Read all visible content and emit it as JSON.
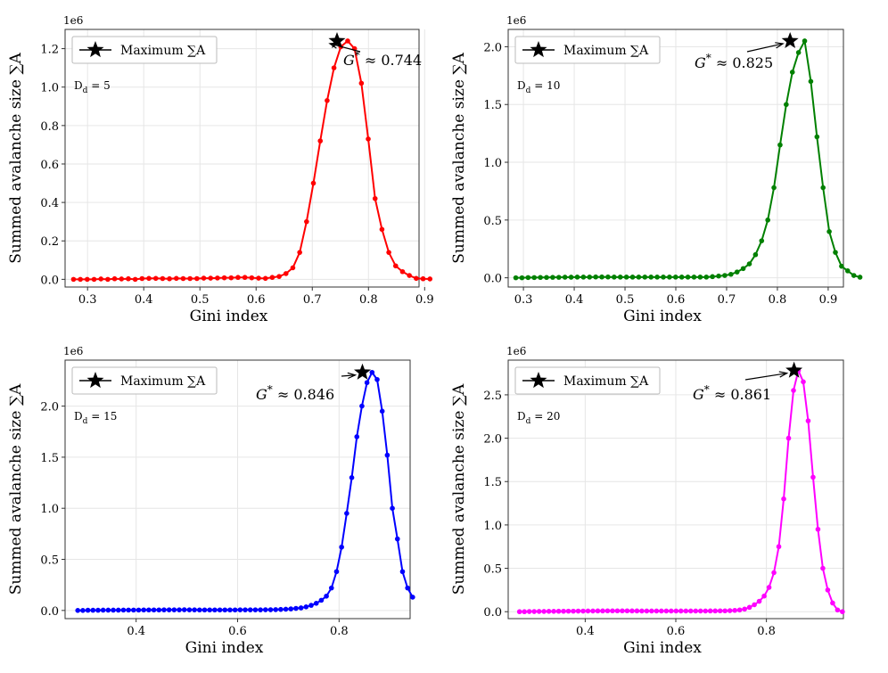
{
  "figure": {
    "legend_label": "Maximum ∑A",
    "multiplier": "1e6",
    "xlabel": "Gini index",
    "ylabel": "Summed avalanche size ∑A"
  },
  "chart_data": [
    {
      "type": "line",
      "panel": "Dd = 5",
      "dd_label": "D",
      "dd_sub": "d",
      "dd_value": "= 5",
      "color": "#ff0000",
      "title": "",
      "xlabel": "Gini index",
      "ylabel": "Summed avalanche size ∑A",
      "multiplier": "1e6",
      "xlim": [
        0.26,
        0.89
      ],
      "ylim": [
        -0.04,
        1.3
      ],
      "xticks": [
        0.3,
        0.4,
        0.5,
        0.6,
        0.7,
        0.8,
        0.9
      ],
      "xtick_labels": [
        "0.3",
        "0.4",
        "0.5",
        "0.6",
        "0.7",
        "0.8",
        "0.9"
      ],
      "yticks": [
        0.0,
        0.2,
        0.4,
        0.6,
        0.8,
        1.0,
        1.2
      ],
      "ytick_labels": [
        "0.0",
        "0.2",
        "0.4",
        "0.6",
        "0.8",
        "1.0",
        "1.2"
      ],
      "x_start": 0.275,
      "x_step": 0.0122,
      "values": [
        0.0,
        0.0,
        0.0,
        0.0,
        0.002,
        0.0,
        0.003,
        0.002,
        0.003,
        0.0,
        0.004,
        0.005,
        0.005,
        0.004,
        0.003,
        0.005,
        0.004,
        0.004,
        0.004,
        0.006,
        0.006,
        0.007,
        0.008,
        0.008,
        0.01,
        0.01,
        0.008,
        0.006,
        0.005,
        0.01,
        0.015,
        0.03,
        0.06,
        0.14,
        0.3,
        0.5,
        0.72,
        0.93,
        1.1,
        1.21,
        1.24,
        1.2,
        1.02,
        0.73,
        0.42,
        0.26,
        0.14,
        0.07,
        0.04,
        0.02,
        0.005,
        0.003,
        0.002
      ],
      "star": {
        "x": 0.744,
        "y": 1.24
      },
      "annotation": {
        "g_symbol": "G",
        "superscript": "*",
        "text": "≈ 0.744"
      }
    },
    {
      "type": "line",
      "panel": "Dd = 10",
      "dd_label": "D",
      "dd_sub": "d",
      "dd_value": "= 10",
      "color": "#008000",
      "title": "",
      "xlabel": "Gini index",
      "ylabel": "Summed avalanche size ∑A",
      "multiplier": "1e6",
      "xlim": [
        0.27,
        0.93
      ],
      "ylim": [
        -0.08,
        2.15
      ],
      "xticks": [
        0.3,
        0.4,
        0.5,
        0.6,
        0.7,
        0.8,
        0.9
      ],
      "xtick_labels": [
        "0.3",
        "0.4",
        "0.5",
        "0.6",
        "0.7",
        "0.8",
        "0.9"
      ],
      "yticks": [
        0.0,
        0.5,
        1.0,
        1.5,
        2.0
      ],
      "ytick_labels": [
        "0.0",
        "0.5",
        "1.0",
        "1.5",
        "2.0"
      ],
      "x_start": 0.285,
      "x_step": 0.0121,
      "values": [
        0.0,
        0.0,
        0.002,
        0.002,
        0.003,
        0.003,
        0.004,
        0.004,
        0.005,
        0.005,
        0.006,
        0.006,
        0.006,
        0.007,
        0.007,
        0.007,
        0.006,
        0.006,
        0.006,
        0.006,
        0.006,
        0.006,
        0.006,
        0.006,
        0.006,
        0.006,
        0.006,
        0.006,
        0.006,
        0.006,
        0.006,
        0.006,
        0.01,
        0.015,
        0.02,
        0.03,
        0.05,
        0.08,
        0.12,
        0.2,
        0.32,
        0.5,
        0.78,
        1.15,
        1.5,
        1.78,
        1.95,
        2.05,
        1.7,
        1.22,
        0.78,
        0.4,
        0.22,
        0.1,
        0.06,
        0.02,
        0.005
      ],
      "star": {
        "x": 0.825,
        "y": 2.05
      },
      "annotation": {
        "g_symbol": "G",
        "superscript": "*",
        "text": "≈ 0.825"
      }
    },
    {
      "type": "line",
      "panel": "Dd = 15",
      "dd_label": "D",
      "dd_sub": "d",
      "dd_value": "= 15",
      "color": "#0000ff",
      "title": "",
      "xlabel": "Gini index",
      "ylabel": "Summed avalanche size ∑A",
      "multiplier": "1e6",
      "xlim": [
        0.26,
        0.94
      ],
      "ylim": [
        -0.08,
        2.45
      ],
      "xticks": [
        0.4,
        0.6,
        0.8
      ],
      "xtick_labels": [
        "0.4",
        "0.6",
        "0.8"
      ],
      "yticks": [
        0.0,
        0.5,
        1.0,
        1.5,
        2.0
      ],
      "ytick_labels": [
        "0.0",
        "0.5",
        "1.0",
        "1.5",
        "2.0"
      ],
      "x_start": 0.285,
      "x_step": 0.01,
      "values": [
        0.0,
        0.0,
        0.002,
        0.002,
        0.002,
        0.003,
        0.003,
        0.003,
        0.003,
        0.004,
        0.004,
        0.004,
        0.004,
        0.005,
        0.005,
        0.005,
        0.005,
        0.006,
        0.006,
        0.006,
        0.006,
        0.007,
        0.006,
        0.006,
        0.005,
        0.005,
        0.005,
        0.005,
        0.005,
        0.005,
        0.005,
        0.005,
        0.006,
        0.006,
        0.006,
        0.006,
        0.006,
        0.007,
        0.007,
        0.008,
        0.01,
        0.012,
        0.015,
        0.02,
        0.025,
        0.035,
        0.05,
        0.07,
        0.1,
        0.14,
        0.22,
        0.38,
        0.62,
        0.95,
        1.3,
        1.7,
        2.0,
        2.23,
        2.33,
        2.26,
        1.95,
        1.52,
        1.0,
        0.7,
        0.38,
        0.22,
        0.13
      ],
      "star": {
        "x": 0.846,
        "y": 2.33
      },
      "annotation": {
        "g_symbol": "G",
        "superscript": "*",
        "text": "≈ 0.846"
      }
    },
    {
      "type": "line",
      "panel": "Dd = 20",
      "dd_label": "D",
      "dd_sub": "d",
      "dd_value": "= 20",
      "color": "#ff00ff",
      "title": "",
      "xlabel": "Gini index",
      "ylabel": "Summed avalanche size ∑A",
      "multiplier": "1e6",
      "xlim": [
        0.23,
        0.97
      ],
      "ylim": [
        -0.08,
        2.9
      ],
      "xticks": [
        0.4,
        0.6,
        0.8
      ],
      "xtick_labels": [
        "0.4",
        "0.6",
        "0.8"
      ],
      "yticks": [
        0.0,
        0.5,
        1.0,
        1.5,
        2.0,
        2.5
      ],
      "ytick_labels": [
        "0.0",
        "0.5",
        "1.0",
        "1.5",
        "2.0",
        "2.5"
      ],
      "x_start": 0.255,
      "x_step": 0.0108,
      "values": [
        0.0,
        0.0,
        0.002,
        0.002,
        0.003,
        0.003,
        0.004,
        0.004,
        0.005,
        0.005,
        0.006,
        0.006,
        0.007,
        0.007,
        0.008,
        0.008,
        0.009,
        0.009,
        0.01,
        0.01,
        0.01,
        0.01,
        0.01,
        0.009,
        0.009,
        0.008,
        0.008,
        0.008,
        0.008,
        0.008,
        0.008,
        0.008,
        0.008,
        0.008,
        0.008,
        0.008,
        0.008,
        0.008,
        0.008,
        0.009,
        0.009,
        0.01,
        0.01,
        0.012,
        0.015,
        0.02,
        0.03,
        0.05,
        0.08,
        0.12,
        0.18,
        0.28,
        0.45,
        0.75,
        1.3,
        2.0,
        2.55,
        2.78,
        2.65,
        2.2,
        1.55,
        0.95,
        0.5,
        0.25,
        0.1,
        0.02,
        0.0
      ],
      "star": {
        "x": 0.861,
        "y": 2.78
      },
      "annotation": {
        "g_symbol": "G",
        "superscript": "*",
        "text": "≈ 0.861"
      }
    }
  ]
}
